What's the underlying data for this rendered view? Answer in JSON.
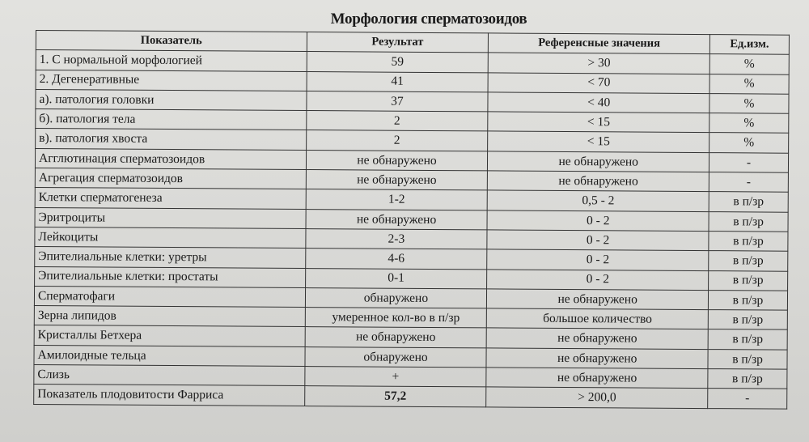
{
  "title": "Морфология сперматозоидов",
  "columns": [
    "Показатель",
    "Результат",
    "Референсные значения",
    "Ед.изм."
  ],
  "rows": [
    [
      "1. С нормальной морфологией",
      "59",
      "> 30",
      "%"
    ],
    [
      "2. Дегенеративные",
      "41",
      "< 70",
      "%"
    ],
    [
      "а).  патология головки",
      "37",
      "< 40",
      "%"
    ],
    [
      "б).  патология тела",
      "2",
      "< 15",
      "%"
    ],
    [
      "в).  патология хвоста",
      "2",
      "< 15",
      "%"
    ],
    [
      "Агглютинация сперматозоидов",
      "не обнаружено",
      "не обнаружено",
      "-"
    ],
    [
      "Агрегация сперматозоидов",
      "не обнаружено",
      "не обнаружено",
      "-"
    ],
    [
      "Клетки сперматогенеза",
      "1-2",
      "0,5 - 2",
      "в п/зр"
    ],
    [
      "Эритроциты",
      "не обнаружено",
      "0 - 2",
      "в п/зр"
    ],
    [
      "Лейкоциты",
      "2-3",
      "0 - 2",
      "в п/зр"
    ],
    [
      "Эпителиальные клетки: уретры",
      "4-6",
      "0 - 2",
      "в п/зр"
    ],
    [
      "Эпителиальные клетки: простаты",
      "0-1",
      "0 - 2",
      "в п/зр"
    ],
    [
      "Сперматофаги",
      "обнаружено",
      "не обнаружено",
      "в п/зр"
    ],
    [
      "Зерна липидов",
      "умеренное кол-во в п/зр",
      "большое количество",
      "в п/зр"
    ],
    [
      "Кристаллы Бетхера",
      "не обнаружено",
      "не обнаружено",
      "в п/зр"
    ],
    [
      "Амилоидные тельца",
      "обнаружено",
      "не обнаружено",
      "в п/зр"
    ],
    [
      "Слизь",
      "+",
      "не обнаружено",
      "в п/зр"
    ],
    [
      "Показатель плодовитости Фарриса",
      "57,2",
      "> 200,0",
      "-"
    ]
  ]
}
